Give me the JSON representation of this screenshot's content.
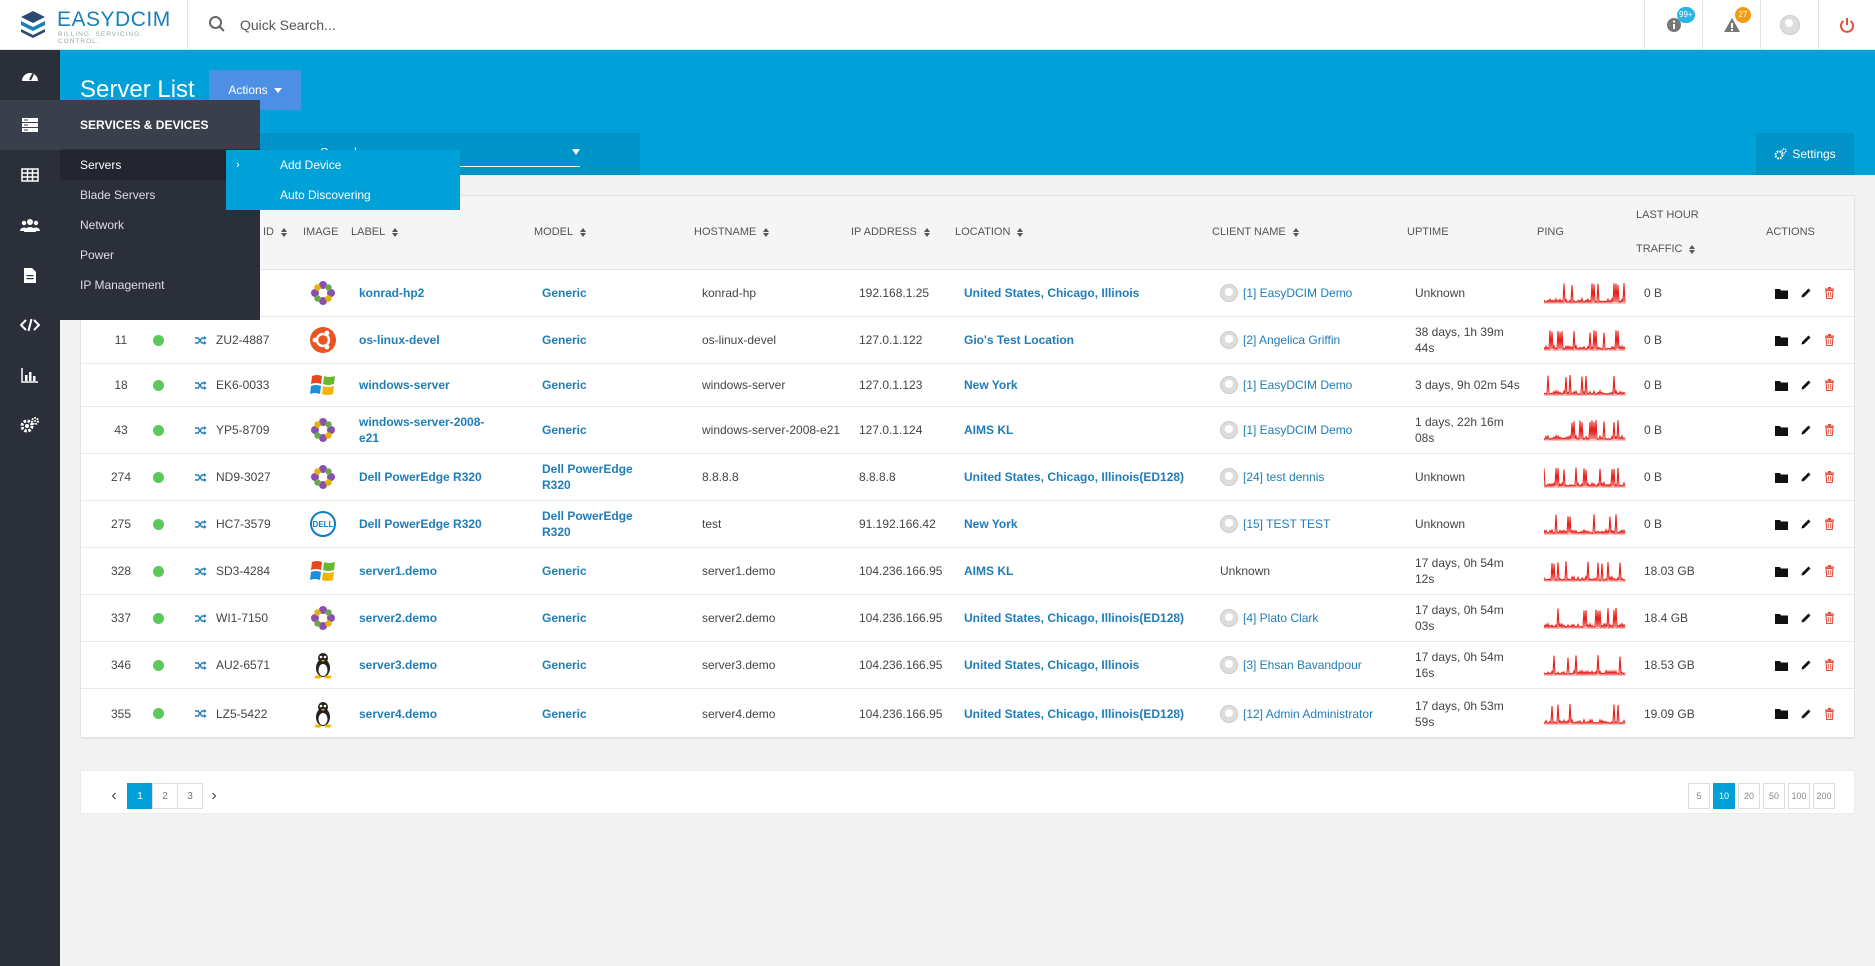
{
  "app": {
    "logo_text": "EASYDCIM",
    "logo_sub": "BILLING. SERVICING. CONTROL.",
    "search_placeholder": "Quick Search..."
  },
  "topbar": {
    "info_badge": "99+",
    "alert_badge": "27",
    "colors": {
      "info": "#2bb5e6",
      "alert": "#f39c12",
      "power": "#e74c3c"
    }
  },
  "page": {
    "title": "Server List",
    "actions_label": "Actions",
    "filter_value": "Search",
    "settings_label": "Settings"
  },
  "sidebar": {
    "icons": [
      "dashboard-icon",
      "server-icon",
      "table-icon",
      "users-icon",
      "document-icon",
      "code-icon",
      "chart-icon",
      "settings-icon"
    ]
  },
  "flyout": {
    "heading": "SERVICES & DEVICES",
    "items": [
      "Servers",
      "Blade Servers",
      "Network",
      "Power",
      "IP Management"
    ],
    "submenu": [
      "Add Device",
      "Auto Discovering"
    ]
  },
  "table": {
    "columns": {
      "id": "ID",
      "image": "IMAGE",
      "label": "LABEL",
      "model": "MODEL",
      "hostname": "HOSTNAME",
      "ip": "IP ADDRESS",
      "location": "LOCATION",
      "client": "CLIENT NAME",
      "uptime": "UPTIME",
      "ping": "PING",
      "traffic_top": "LAST HOUR",
      "traffic_bottom": "TRAFFIC",
      "actions": "ACTIONS"
    },
    "rows": [
      {
        "id": "",
        "tag": "",
        "os": "gentoo",
        "label": "konrad-hp2",
        "model": "Generic",
        "hostname": "konrad-hp",
        "ip": "192.168.1.25",
        "location": "United States, Chicago, Illinois",
        "client": "[1] EasyDCIM Demo",
        "uptime": "Unknown",
        "traffic": "0 B"
      },
      {
        "id": "11",
        "tag": "ZU2-4887",
        "os": "ubuntu",
        "label": "os-linux-devel",
        "model": "Generic",
        "hostname": "os-linux-devel",
        "ip": "127.0.1.122",
        "location": "Gio's Test Location",
        "client": "[2] Angelica Griffin",
        "uptime": "38 days, 1h 39m 44s",
        "traffic": "0 B"
      },
      {
        "id": "18",
        "tag": "EK6-0033",
        "os": "windows",
        "label": "windows-server",
        "model": "Generic",
        "hostname": "windows-server",
        "ip": "127.0.1.123",
        "location": "New York",
        "client": "[1] EasyDCIM Demo",
        "uptime": "3 days, 9h 02m 54s",
        "traffic": "0 B"
      },
      {
        "id": "43",
        "tag": "YP5-8709",
        "os": "gentoo",
        "label": "windows-server-2008-e21",
        "model": "Generic",
        "hostname": "windows-server-2008-e21",
        "ip": "127.0.1.124",
        "location": "AIMS KL",
        "client": "[1] EasyDCIM Demo",
        "uptime": "1 days, 22h 16m 08s",
        "traffic": "0 B"
      },
      {
        "id": "274",
        "tag": "ND9-3027",
        "os": "gentoo",
        "label": "Dell PowerEdge R320",
        "model": "Dell PowerEdge R320",
        "hostname": "8.8.8.8",
        "ip": "8.8.8.8",
        "location": "United States, Chicago, Illinois(ED128)",
        "client": "[24] test dennis",
        "uptime": "Unknown",
        "traffic": "0 B"
      },
      {
        "id": "275",
        "tag": "HC7-3579",
        "os": "dell",
        "label": "Dell PowerEdge R320",
        "model": "Dell PowerEdge R320",
        "hostname": "test",
        "ip": "91.192.166.42",
        "location": "New York",
        "client": "[15] TEST TEST",
        "uptime": "Unknown",
        "traffic": "0 B"
      },
      {
        "id": "328",
        "tag": "SD3-4284",
        "os": "windows",
        "label": "server1.demo",
        "model": "Generic",
        "hostname": "server1.demo",
        "ip": "104.236.166.95",
        "location": "AIMS KL",
        "client": "Unknown",
        "uptime": "17 days, 0h 54m 12s",
        "traffic": "18.03 GB"
      },
      {
        "id": "337",
        "tag": "WI1-7150",
        "os": "gentoo",
        "label": "server2.demo",
        "model": "Generic",
        "hostname": "server2.demo",
        "ip": "104.236.166.95",
        "location": "United States, Chicago, Illinois(ED128)",
        "client": "[4] Plato Clark",
        "uptime": "17 days, 0h 54m 03s",
        "traffic": "18.4 GB"
      },
      {
        "id": "346",
        "tag": "AU2-6571",
        "os": "linux",
        "label": "server3.demo",
        "model": "Generic",
        "hostname": "server3.demo",
        "ip": "104.236.166.95",
        "location": "United States, Chicago, Illinois",
        "client": "[3] Ehsan Bavandpour",
        "uptime": "17 days, 0h 54m 16s",
        "traffic": "18.53 GB"
      },
      {
        "id": "355",
        "tag": "LZ5-5422",
        "os": "linux",
        "label": "server4.demo",
        "model": "Generic",
        "hostname": "server4.demo",
        "ip": "104.236.166.95",
        "location": "United States, Chicago, Illinois(ED128)",
        "client": "[12] Admin Administrator",
        "uptime": "17 days, 0h 53m 59s",
        "traffic": "19.09 GB"
      }
    ]
  },
  "pagination": {
    "pages": [
      "1",
      "2",
      "3"
    ],
    "current_page": "1",
    "page_sizes": [
      "5",
      "10",
      "20",
      "50",
      "100",
      "200"
    ],
    "current_size": "10"
  }
}
